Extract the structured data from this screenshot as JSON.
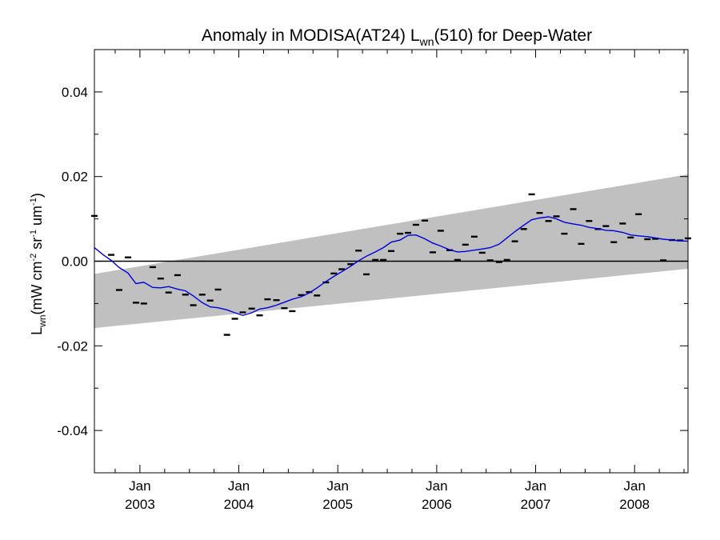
{
  "chart_data": {
    "type": "line",
    "title": {
      "prefix": "Anomaly in MODISA(AT24) L",
      "subscript": "wn",
      "suffix": "(510) for Deep-Water"
    },
    "ylabel": {
      "main": "L",
      "sub": "wn",
      "units": "(mW cm",
      "units_sup1": "-2",
      "units_mid": " sr",
      "units_sup2": "-1",
      "units_mid2": " um",
      "units_sup3": "-1",
      "units_end": ")"
    },
    "xlim": [
      2002.54,
      2008.54
    ],
    "ylim": [
      -0.05,
      0.05
    ],
    "x_ticks": [
      {
        "value": 2003.0,
        "month": "Jan",
        "year": "2003"
      },
      {
        "value": 2004.0,
        "month": "Jan",
        "year": "2004"
      },
      {
        "value": 2005.0,
        "month": "Jan",
        "year": "2005"
      },
      {
        "value": 2006.0,
        "month": "Jan",
        "year": "2006"
      },
      {
        "value": 2007.0,
        "month": "Jan",
        "year": "2007"
      },
      {
        "value": 2008.0,
        "month": "Jan",
        "year": "2008"
      }
    ],
    "y_ticks": [
      {
        "value": 0.04,
        "label": "0.04"
      },
      {
        "value": 0.02,
        "label": "0.02"
      },
      {
        "value": 0.0,
        "label": "0.00"
      },
      {
        "value": -0.02,
        "label": "-0.02"
      },
      {
        "value": -0.04,
        "label": "-0.04"
      }
    ],
    "uncertainty_band": {
      "x_start": 2002.54,
      "x_end": 2008.54,
      "lower": [
        -0.0158,
        -0.0018
      ],
      "upper": [
        -0.003,
        0.0205
      ],
      "color": "#c0c0c0"
    },
    "zero_line": 0.0,
    "monthly_anomalies": {
      "x": [
        2002.54,
        2002.71,
        2002.79,
        2002.88,
        2002.96,
        2003.04,
        2003.13,
        2003.21,
        2003.29,
        2003.38,
        2003.46,
        2003.54,
        2003.63,
        2003.71,
        2003.79,
        2003.88,
        2003.96,
        2004.04,
        2004.13,
        2004.21,
        2004.29,
        2004.38,
        2004.46,
        2004.54,
        2004.63,
        2004.71,
        2004.79,
        2004.88,
        2004.96,
        2005.04,
        2005.13,
        2005.21,
        2005.29,
        2005.38,
        2005.46,
        2005.54,
        2005.63,
        2005.71,
        2005.79,
        2005.88,
        2005.96,
        2006.04,
        2006.13,
        2006.21,
        2006.29,
        2006.38,
        2006.46,
        2006.54,
        2006.63,
        2006.71,
        2006.79,
        2006.88,
        2006.96,
        2007.04,
        2007.13,
        2007.21,
        2007.29,
        2007.38,
        2007.46,
        2007.54,
        2007.63,
        2007.71,
        2007.79,
        2007.88,
        2007.96,
        2008.04,
        2008.13,
        2008.21,
        2008.29,
        2008.38,
        2008.46,
        2008.54
      ],
      "y": [
        0.0107,
        0.0015,
        -0.0068,
        0.0009,
        -0.0098,
        -0.01,
        -0.0014,
        -0.0041,
        -0.0074,
        -0.0033,
        -0.0079,
        -0.0104,
        -0.0079,
        -0.0093,
        -0.0067,
        -0.0174,
        -0.0136,
        -0.0121,
        -0.0112,
        -0.0128,
        -0.009,
        -0.0092,
        -0.0111,
        -0.0118,
        -0.008,
        -0.0073,
        -0.0081,
        -0.005,
        -0.0029,
        -0.0019,
        -0.0007,
        0.0025,
        -0.0031,
        0.0003,
        0.0003,
        0.0024,
        0.0065,
        0.0067,
        0.0086,
        0.0096,
        0.0021,
        0.0072,
        0.0026,
        0.0003,
        0.0039,
        0.0058,
        0.002,
        0.0002,
        -0.0002,
        0.0003,
        0.0047,
        0.0076,
        0.0158,
        0.0114,
        0.0095,
        0.0106,
        0.0065,
        0.0123,
        0.0041,
        0.0095,
        0.0076,
        0.0083,
        0.0045,
        0.0089,
        0.0056,
        0.0111,
        0.0052,
        0.0053,
        0.0002,
        0.005,
        0.0049,
        0.0054
      ]
    },
    "running_mean": {
      "color": "#0000dd",
      "x": [
        2002.54,
        2002.63,
        2002.71,
        2002.79,
        2002.88,
        2002.96,
        2003.04,
        2003.13,
        2003.21,
        2003.29,
        2003.38,
        2003.46,
        2003.54,
        2003.63,
        2003.71,
        2003.79,
        2003.88,
        2003.96,
        2004.04,
        2004.13,
        2004.21,
        2004.29,
        2004.38,
        2004.46,
        2004.54,
        2004.63,
        2004.71,
        2004.79,
        2004.88,
        2004.96,
        2005.04,
        2005.13,
        2005.21,
        2005.29,
        2005.38,
        2005.46,
        2005.54,
        2005.63,
        2005.71,
        2005.79,
        2005.88,
        2005.96,
        2006.04,
        2006.13,
        2006.21,
        2006.29,
        2006.38,
        2006.46,
        2006.54,
        2006.63,
        2006.71,
        2006.79,
        2006.88,
        2006.96,
        2007.04,
        2007.13,
        2007.21,
        2007.29,
        2007.38,
        2007.46,
        2007.54,
        2007.63,
        2007.71,
        2007.79,
        2007.88,
        2007.96,
        2008.04,
        2008.13,
        2008.21,
        2008.29,
        2008.38,
        2008.46,
        2008.54
      ],
      "y": [
        0.0032,
        0.0015,
        0.0002,
        -0.0015,
        -0.0028,
        -0.0053,
        -0.005,
        -0.0062,
        -0.0063,
        -0.006,
        -0.0066,
        -0.007,
        -0.0082,
        -0.0098,
        -0.0108,
        -0.011,
        -0.0115,
        -0.0122,
        -0.0128,
        -0.0122,
        -0.0113,
        -0.011,
        -0.0104,
        -0.0097,
        -0.009,
        -0.0084,
        -0.0075,
        -0.0063,
        -0.0048,
        -0.0036,
        -0.0025,
        -0.0012,
        0.0001,
        0.0012,
        0.0022,
        0.0032,
        0.0045,
        0.005,
        0.0061,
        0.0062,
        0.0053,
        0.0043,
        0.0036,
        0.0027,
        0.0022,
        0.0023,
        0.0026,
        0.0029,
        0.0032,
        0.004,
        0.0055,
        0.007,
        0.0085,
        0.0098,
        0.0102,
        0.0105,
        0.01,
        0.0092,
        0.0088,
        0.0085,
        0.008,
        0.0077,
        0.0073,
        0.0072,
        0.0068,
        0.0062,
        0.006,
        0.0058,
        0.0055,
        0.0052,
        0.005,
        0.0048,
        0.0047
      ]
    }
  }
}
